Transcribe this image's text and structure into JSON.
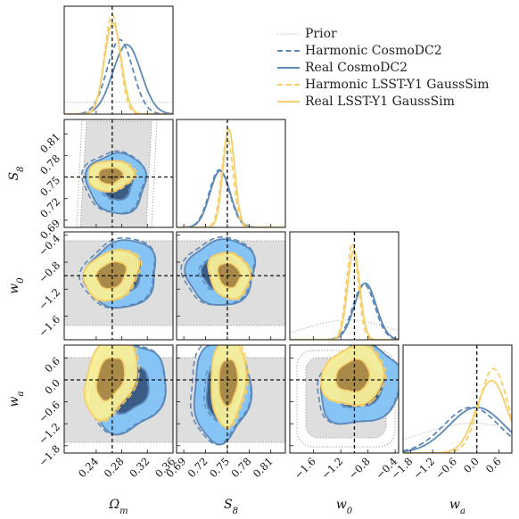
{
  "chart_data": {
    "type": "corner",
    "parameters": [
      {
        "key": "omega_m",
        "label": "Ω",
        "sub": "m",
        "range": [
          0.19,
          0.36
        ],
        "truth": 0.265,
        "ticks": [
          "0.24",
          "0.28",
          "0.32",
          "0.36"
        ],
        "tick_values": [
          0.24,
          0.28,
          0.32,
          0.36
        ]
      },
      {
        "key": "s8",
        "label": "S",
        "sub": "8",
        "range": [
          0.68,
          0.83
        ],
        "truth": 0.75,
        "ticks": [
          "0.69",
          "0.72",
          "0.75",
          "0.78",
          "0.81"
        ],
        "tick_values": [
          0.69,
          0.72,
          0.75,
          0.78,
          0.81
        ]
      },
      {
        "key": "w0",
        "label": "w",
        "sub": "0",
        "range": [
          -1.95,
          -0.35
        ],
        "truth": -1.0,
        "ticks": [
          "−1.6",
          "−1.2",
          "−0.8",
          "−0.4"
        ],
        "tick_values": [
          -1.6,
          -1.2,
          -0.8,
          -0.4
        ]
      },
      {
        "key": "wa",
        "label": "w",
        "sub": "a",
        "range": [
          -2.0,
          0.95
        ],
        "truth": 0.0,
        "ticks": [
          "−1.8",
          "−1.2",
          "−0.6",
          "0.0",
          "0.6"
        ],
        "tick_values": [
          -1.8,
          -1.2,
          -0.6,
          0.0,
          0.6
        ]
      }
    ],
    "series": [
      {
        "name": "Prior",
        "style": "dotted",
        "color": "#b0b0b0",
        "fill": "#dedede"
      },
      {
        "name": "Harmonic CosmoDC2",
        "style": "dashed",
        "color": "#5c88b8",
        "fill": "none"
      },
      {
        "name": "Real CosmoDC2",
        "style": "solid",
        "color": "#5c88b8",
        "fill": "#86c4f5",
        "fill_inner": "#3b5c85"
      },
      {
        "name": "Harmonic LSST-Y1 GaussSim",
        "style": "dashed",
        "color": "#f6cf6a",
        "fill": "none"
      },
      {
        "name": "Real LSST-Y1 GaussSim",
        "style": "solid",
        "color": "#f6cf6a",
        "fill": "#f8ef98",
        "fill_inner": "#a98a49"
      }
    ],
    "marginals": {
      "omega_m": {
        "Prior": {
          "mean": 0.27,
          "sd": 0.5,
          "amp": 0.12
        },
        "Harmonic CosmoDC2": {
          "mean": 0.277,
          "sd": 0.02,
          "amp": 0.75
        },
        "Real CosmoDC2": {
          "mean": 0.288,
          "sd": 0.022,
          "amp": 0.7
        },
        "Harmonic LSST-Y1 GaussSim": {
          "mean": 0.265,
          "sd": 0.012,
          "amp": 1.0
        },
        "Real LSST-Y1 GaussSim": {
          "mean": 0.266,
          "sd": 0.013,
          "amp": 0.92
        }
      },
      "s8": {
        "Harmonic CosmoDC2": {
          "mean": 0.739,
          "sd": 0.014,
          "amp": 0.58
        },
        "Real CosmoDC2": {
          "mean": 0.74,
          "sd": 0.014,
          "amp": 0.57
        },
        "Harmonic LSST-Y1 GaussSim": {
          "mean": 0.75,
          "sd": 0.008,
          "amp": 0.9
        },
        "Real LSST-Y1 GaussSim": {
          "mean": 0.752,
          "sd": 0.008,
          "amp": 0.99
        }
      },
      "w0": {
        "Prior": {
          "mean": -1.1,
          "sd": 0.6,
          "amp": 0.2
        },
        "Harmonic CosmoDC2": {
          "mean": -0.86,
          "sd": 0.16,
          "amp": 0.56
        },
        "Real CosmoDC2": {
          "mean": -0.84,
          "sd": 0.16,
          "amp": 0.57
        },
        "Harmonic LSST-Y1 GaussSim": {
          "mean": -1.03,
          "sd": 0.085,
          "amp": 0.97
        },
        "Real LSST-Y1 GaussSim": {
          "mean": -1.01,
          "sd": 0.09,
          "amp": 0.9
        }
      },
      "wa": {
        "Prior": {
          "mean": -0.1,
          "sd": 1.5,
          "amp": 0.3
        },
        "Harmonic CosmoDC2": {
          "mean": -0.15,
          "sd": 0.75,
          "amp": 0.46
        },
        "Real CosmoDC2": {
          "mean": 0.0,
          "sd": 0.75,
          "amp": 0.46
        },
        "Harmonic LSST-Y1 GaussSim": {
          "mean": 0.45,
          "sd": 0.38,
          "amp": 0.85
        },
        "Real LSST-Y1 GaussSim": {
          "mean": 0.4,
          "sd": 0.42,
          "amp": 0.73
        }
      }
    },
    "legend": {
      "position": "top-right",
      "labels": [
        "Prior",
        "Harmonic CosmoDC2",
        "Real CosmoDC2",
        "Harmonic LSST-Y1 GaussSim",
        "Real LSST-Y1 GaussSim"
      ]
    },
    "truth_line": {
      "style": "dashed",
      "color": "#111111"
    },
    "grid": false
  }
}
